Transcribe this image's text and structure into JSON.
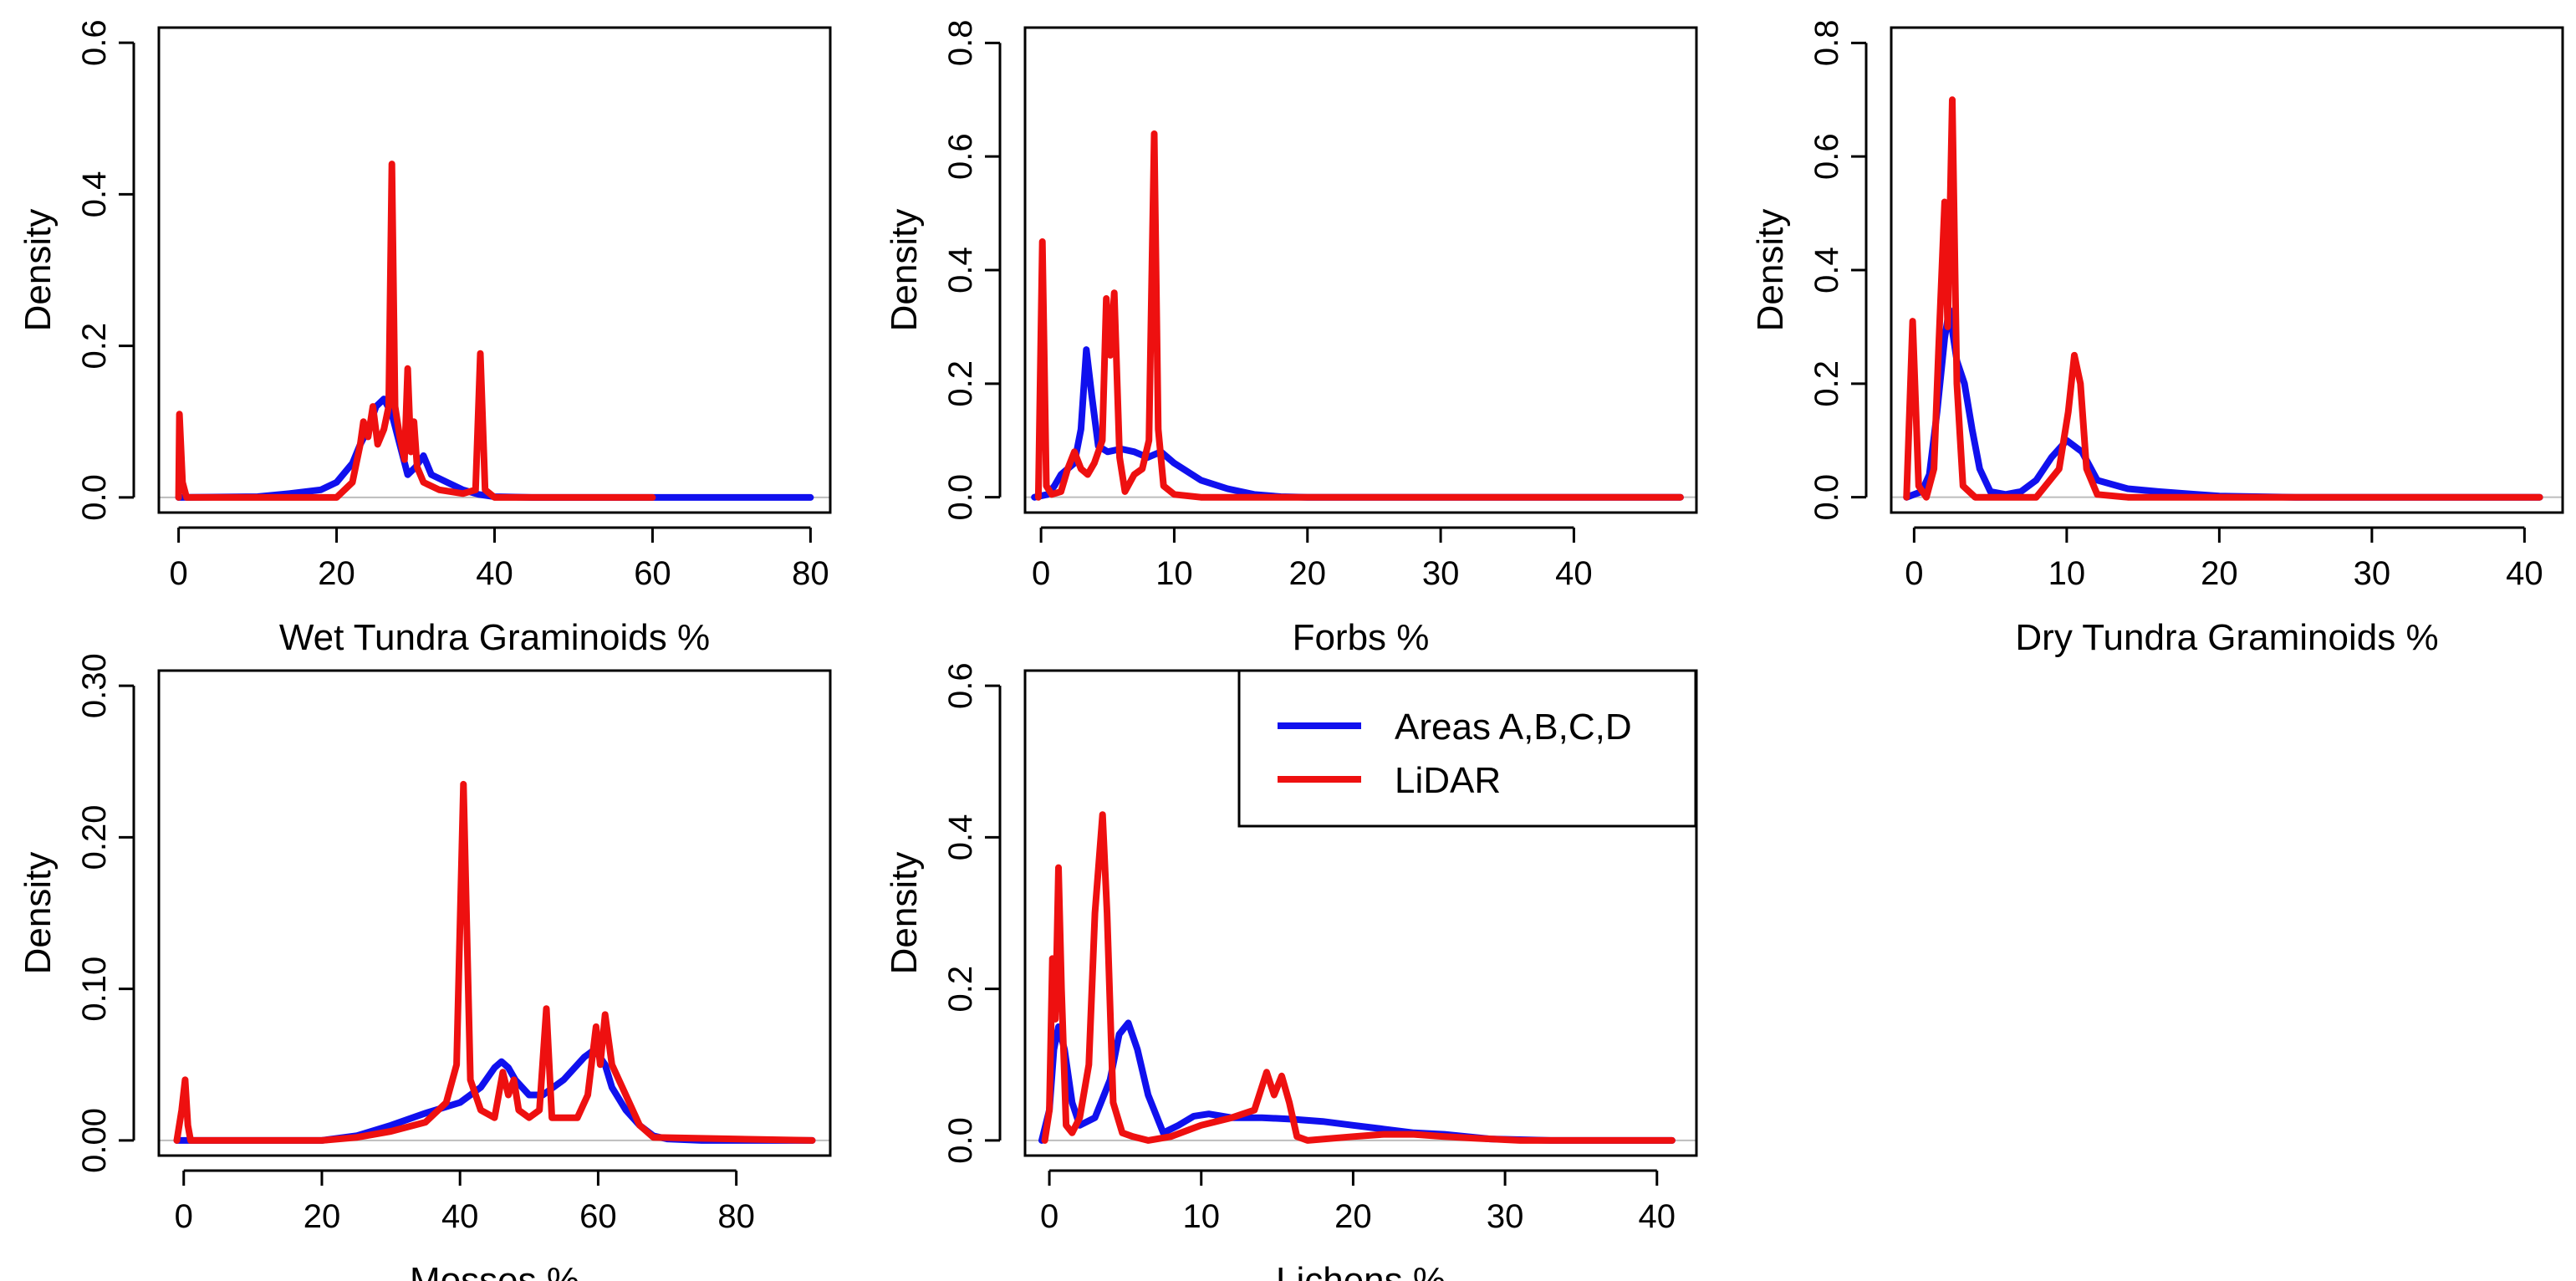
{
  "legend": {
    "entries": [
      {
        "label": "Areas A,B,C,D",
        "color": "#1010ee"
      },
      {
        "label": "LiDAR",
        "color": "#ee1010"
      }
    ]
  },
  "chart_data": [
    {
      "type": "line",
      "title": "",
      "xlabel": "Wet Tundra Graminoids %",
      "ylabel": "Density",
      "xlim": [
        -2.5,
        82.5
      ],
      "ylim": [
        -0.02,
        0.62
      ],
      "xticks": [
        0,
        20,
        40,
        60,
        80
      ],
      "yticks": [
        0.0,
        0.2,
        0.4,
        0.6
      ],
      "ytick_labels": [
        "0.0",
        "0.2",
        "0.4",
        "0.6"
      ],
      "series": [
        {
          "name": "Areas A,B,C,D",
          "color": "#1010ee",
          "x": [
            0,
            10,
            14,
            18,
            20,
            22,
            23,
            24,
            25,
            26,
            27,
            28,
            29,
            30,
            31,
            32,
            34,
            36,
            38,
            40,
            45,
            50,
            60,
            70,
            80
          ],
          "y": [
            0.0,
            0.001,
            0.005,
            0.01,
            0.02,
            0.045,
            0.07,
            0.09,
            0.12,
            0.13,
            0.11,
            0.07,
            0.03,
            0.04,
            0.055,
            0.03,
            0.02,
            0.01,
            0.004,
            0.001,
            0.0,
            0.0,
            0.0,
            0.0,
            0.0
          ]
        },
        {
          "name": "LiDAR",
          "color": "#ee1010",
          "x": [
            0,
            0.1,
            0.5,
            1,
            20,
            22,
            23,
            23.4,
            24,
            24.6,
            25.2,
            26,
            26.6,
            27,
            27.4,
            28,
            28.6,
            29,
            29.4,
            29.8,
            30.2,
            31,
            33,
            36,
            37.6,
            38.2,
            38.8,
            40,
            60
          ],
          "y": [
            0.0,
            0.11,
            0.02,
            0.0,
            0.0,
            0.02,
            0.07,
            0.1,
            0.08,
            0.12,
            0.07,
            0.09,
            0.12,
            0.44,
            0.12,
            0.08,
            0.05,
            0.17,
            0.06,
            0.1,
            0.04,
            0.02,
            0.01,
            0.005,
            0.01,
            0.19,
            0.01,
            0.0,
            0.0
          ]
        }
      ]
    },
    {
      "type": "line",
      "title": "",
      "xlabel": "Forbs %",
      "ylabel": "Density",
      "xlim": [
        -1.2,
        49.2
      ],
      "ylim": [
        -0.027,
        0.827
      ],
      "xticks": [
        0,
        10,
        20,
        30,
        40
      ],
      "yticks": [
        0.0,
        0.2,
        0.4,
        0.6,
        0.8
      ],
      "ytick_labels": [
        "0.0",
        "0.2",
        "0.4",
        "0.6",
        "0.8"
      ],
      "series": [
        {
          "name": "Areas A,B,C,D",
          "color": "#1010ee",
          "x": [
            -0.5,
            0.5,
            1,
            1.5,
            2,
            2.5,
            3,
            3.4,
            3.8,
            4.3,
            5,
            6,
            7,
            8,
            9,
            10,
            12,
            14,
            16,
            18,
            20,
            30,
            40,
            48
          ],
          "y": [
            0.0,
            0.005,
            0.02,
            0.04,
            0.05,
            0.06,
            0.12,
            0.26,
            0.18,
            0.09,
            0.08,
            0.085,
            0.08,
            0.07,
            0.08,
            0.06,
            0.03,
            0.015,
            0.005,
            0.001,
            0.0,
            0.0,
            0.0,
            0.0
          ]
        },
        {
          "name": "LiDAR",
          "color": "#ee1010",
          "x": [
            -0.2,
            0.1,
            0.4,
            0.8,
            1.5,
            2,
            2.5,
            3,
            3.5,
            4,
            4.6,
            4.9,
            5.2,
            5.5,
            5.9,
            6.3,
            7,
            7.6,
            8.1,
            8.5,
            8.8,
            9.2,
            10,
            12,
            48
          ],
          "y": [
            0.0,
            0.45,
            0.02,
            0.005,
            0.01,
            0.05,
            0.08,
            0.05,
            0.04,
            0.06,
            0.1,
            0.35,
            0.25,
            0.36,
            0.07,
            0.01,
            0.04,
            0.05,
            0.1,
            0.64,
            0.12,
            0.02,
            0.005,
            0.0,
            0.0
          ]
        }
      ]
    },
    {
      "type": "line",
      "title": "",
      "xlabel": "Dry Tundra Graminoids %",
      "ylabel": "Density",
      "xlim": [
        -1.5,
        42.5
      ],
      "ylim": [
        -0.027,
        0.827
      ],
      "xticks": [
        0,
        10,
        20,
        30,
        40
      ],
      "yticks": [
        0.0,
        0.2,
        0.4,
        0.6,
        0.8
      ],
      "ytick_labels": [
        "0.0",
        "0.2",
        "0.4",
        "0.6",
        "0.8"
      ],
      "series": [
        {
          "name": "Areas A,B,C,D",
          "color": "#1010ee",
          "x": [
            -0.5,
            0.5,
            1,
            1.5,
            2,
            2.3,
            2.8,
            3.3,
            3.8,
            4.3,
            5,
            6,
            7,
            8,
            9,
            10,
            11,
            12,
            14,
            16,
            18,
            20,
            25,
            30,
            41
          ],
          "y": [
            0.0,
            0.01,
            0.04,
            0.15,
            0.28,
            0.33,
            0.24,
            0.2,
            0.12,
            0.05,
            0.01,
            0.005,
            0.01,
            0.03,
            0.07,
            0.1,
            0.08,
            0.03,
            0.015,
            0.01,
            0.006,
            0.002,
            0.0,
            0.0,
            0.0
          ]
        },
        {
          "name": "LiDAR",
          "color": "#ee1010",
          "x": [
            -0.5,
            -0.1,
            0.3,
            0.8,
            1.3,
            1.6,
            2.0,
            2.2,
            2.5,
            2.8,
            3.2,
            4,
            8,
            9.5,
            10.1,
            10.5,
            10.9,
            11.3,
            12,
            14,
            41
          ],
          "y": [
            0.0,
            0.31,
            0.02,
            0.0,
            0.05,
            0.26,
            0.52,
            0.3,
            0.7,
            0.2,
            0.02,
            0.0,
            0.0,
            0.05,
            0.15,
            0.25,
            0.2,
            0.05,
            0.005,
            0.0,
            0.0
          ]
        }
      ]
    },
    {
      "type": "line",
      "title": "",
      "xlabel": "Mosses %",
      "ylabel": "Density",
      "xlim": [
        -3.6,
        93.6
      ],
      "ylim": [
        -0.01,
        0.31
      ],
      "xticks": [
        0,
        20,
        40,
        60,
        80
      ],
      "yticks": [
        0.0,
        0.1,
        0.2,
        0.3
      ],
      "ytick_labels": [
        "0.00",
        "0.10",
        "0.20",
        "0.30"
      ],
      "series": [
        {
          "name": "Areas A,B,C,D",
          "color": "#1010ee",
          "x": [
            -1,
            10,
            20,
            25,
            30,
            35,
            40,
            43,
            45,
            46,
            47,
            48,
            50,
            52,
            55,
            58,
            59.5,
            61,
            62,
            64,
            66,
            68,
            70,
            75,
            80,
            91
          ],
          "y": [
            0.0,
            0.0,
            0.0,
            0.003,
            0.01,
            0.018,
            0.025,
            0.035,
            0.048,
            0.052,
            0.048,
            0.04,
            0.03,
            0.03,
            0.04,
            0.055,
            0.06,
            0.05,
            0.035,
            0.02,
            0.01,
            0.003,
            0.001,
            0.0,
            0.0,
            0.0
          ]
        },
        {
          "name": "LiDAR",
          "color": "#ee1010",
          "x": [
            -1,
            -0.3,
            0.2,
            0.6,
            1,
            20,
            25,
            30,
            35,
            38,
            39.5,
            40.5,
            41.5,
            43,
            45,
            46.2,
            47,
            47.8,
            48.5,
            50,
            51.5,
            52.5,
            53.3,
            55,
            57,
            58.5,
            59.7,
            60.3,
            61,
            62,
            64,
            66,
            68,
            91
          ],
          "y": [
            0.0,
            0.02,
            0.04,
            0.01,
            0.0,
            0.0,
            0.002,
            0.006,
            0.012,
            0.025,
            0.05,
            0.235,
            0.04,
            0.02,
            0.015,
            0.045,
            0.03,
            0.04,
            0.02,
            0.015,
            0.02,
            0.087,
            0.015,
            0.015,
            0.015,
            0.03,
            0.075,
            0.05,
            0.083,
            0.05,
            0.03,
            0.01,
            0.002,
            0.0
          ]
        }
      ]
    },
    {
      "type": "line",
      "title": "",
      "xlabel": "Lichens %",
      "ylabel": "Density",
      "xlim": [
        -1.6,
        42.6
      ],
      "ylim": [
        -0.02,
        0.62
      ],
      "xticks": [
        0,
        10,
        20,
        30,
        40
      ],
      "yticks": [
        0.0,
        0.2,
        0.4,
        0.6
      ],
      "ytick_labels": [
        "0.0",
        "0.2",
        "0.4",
        "0.6"
      ],
      "series": [
        {
          "name": "Areas A,B,C,D",
          "color": "#1010ee",
          "x": [
            -0.5,
            0,
            0.3,
            0.6,
            1,
            1.5,
            2,
            3,
            4,
            4.6,
            5.2,
            5.8,
            6.5,
            7.5,
            8.5,
            9.5,
            10.5,
            12,
            14,
            16,
            18,
            20,
            22,
            24,
            26,
            27.5,
            29,
            31,
            33,
            41
          ],
          "y": [
            0.0,
            0.04,
            0.12,
            0.15,
            0.12,
            0.05,
            0.02,
            0.03,
            0.08,
            0.14,
            0.155,
            0.12,
            0.06,
            0.01,
            0.02,
            0.032,
            0.035,
            0.03,
            0.03,
            0.028,
            0.025,
            0.02,
            0.015,
            0.01,
            0.008,
            0.005,
            0.002,
            0.001,
            0.0,
            0.0
          ]
        },
        {
          "name": "LiDAR",
          "color": "#ee1010",
          "x": [
            -0.3,
            0,
            0.2,
            0.4,
            0.6,
            0.8,
            1.1,
            1.5,
            2,
            2.6,
            3,
            3.5,
            3.8,
            4.2,
            4.8,
            5.5,
            6.5,
            8,
            10,
            12,
            13.5,
            14.3,
            14.8,
            15.3,
            15.8,
            16.3,
            17,
            20,
            22,
            24,
            26,
            28,
            30,
            31,
            41
          ],
          "y": [
            0.0,
            0.04,
            0.24,
            0.16,
            0.36,
            0.2,
            0.02,
            0.01,
            0.03,
            0.1,
            0.3,
            0.43,
            0.3,
            0.05,
            0.01,
            0.005,
            0.0,
            0.005,
            0.02,
            0.03,
            0.04,
            0.09,
            0.06,
            0.085,
            0.05,
            0.005,
            0.0,
            0.005,
            0.008,
            0.008,
            0.005,
            0.003,
            0.001,
            0.0,
            0.0
          ]
        }
      ]
    }
  ]
}
